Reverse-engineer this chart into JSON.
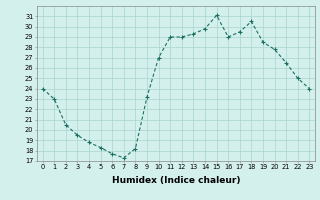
{
  "title": "",
  "xlabel": "Humidex (Indice chaleur)",
  "x_values": [
    0,
    1,
    2,
    3,
    4,
    5,
    6,
    7,
    8,
    9,
    10,
    11,
    12,
    13,
    14,
    15,
    16,
    17,
    18,
    19,
    20,
    21,
    22,
    23
  ],
  "y_values": [
    24,
    23,
    20.5,
    19.5,
    18.8,
    18.3,
    17.7,
    17.3,
    18.2,
    23.2,
    27,
    29,
    29,
    29.3,
    29.8,
    31.1,
    29,
    29.5,
    30.5,
    28.5,
    27.8,
    26.5,
    25,
    24
  ],
  "ylim": [
    17,
    32
  ],
  "xlim": [
    -0.5,
    23.5
  ],
  "yticks": [
    17,
    18,
    19,
    20,
    21,
    22,
    23,
    24,
    25,
    26,
    27,
    28,
    29,
    30,
    31
  ],
  "xticks": [
    0,
    1,
    2,
    3,
    4,
    5,
    6,
    7,
    8,
    9,
    10,
    11,
    12,
    13,
    14,
    15,
    16,
    17,
    18,
    19,
    20,
    21,
    22,
    23
  ],
  "line_color": "#1a6e62",
  "marker_color": "#1a6e62",
  "bg_color": "#d4f0ec",
  "grid_color": "#aad4ce",
  "tick_fontsize": 4.8,
  "label_fontsize": 6.5
}
